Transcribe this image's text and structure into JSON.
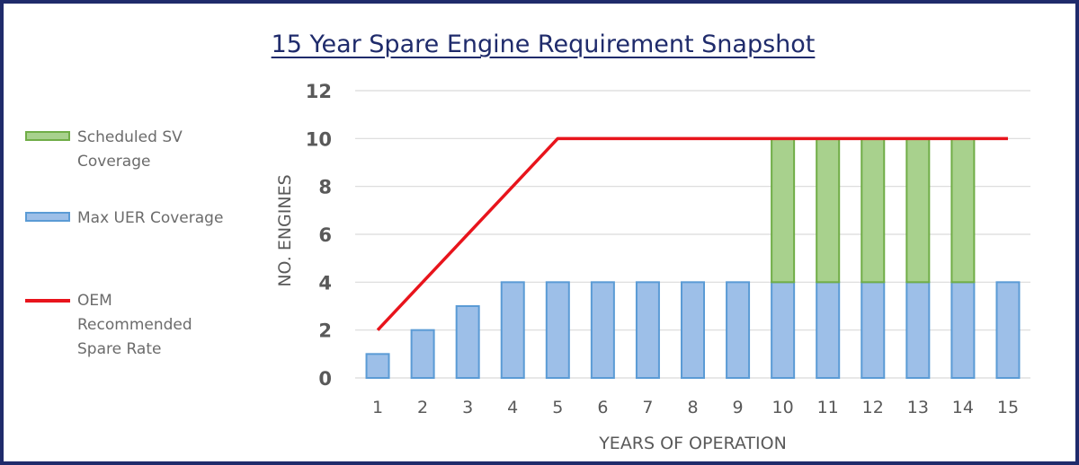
{
  "title": "15 Year Spare Engine Requirement Snapshot",
  "legend": {
    "items": [
      {
        "label": "Scheduled SV Coverage",
        "kind": "bar",
        "color": "#a8d18d"
      },
      {
        "label": "Max UER Coverage",
        "kind": "bar",
        "color": "#9dbfe8"
      },
      {
        "label": "OEM Recommended Spare Rate",
        "kind": "line",
        "color": "#e8141c"
      }
    ]
  },
  "colors": {
    "frame": "#1f2b6b",
    "title": "#1f2b6b",
    "max_uer": "#9dbfe8",
    "max_uer_border": "#5b9bd5",
    "scheduled_sv": "#a8d18d",
    "scheduled_sv_border": "#70ad47",
    "oem_line": "#e8141c",
    "grid": "#d9d9d9"
  },
  "chart_data": {
    "type": "bar",
    "stacked": true,
    "title": "15 Year Spare Engine Requirement Snapshot",
    "xlabel": "YEARS OF OPERATION",
    "ylabel": "NO. ENGINES",
    "ylim": [
      0,
      12
    ],
    "yticks": [
      0,
      2,
      4,
      6,
      8,
      10,
      12
    ],
    "grid": true,
    "legend_position": "left",
    "categories": [
      "1",
      "2",
      "3",
      "4",
      "5",
      "6",
      "7",
      "8",
      "9",
      "10",
      "11",
      "12",
      "13",
      "14",
      "15"
    ],
    "series": [
      {
        "name": "Max UER Coverage",
        "type": "bar",
        "values": [
          1,
          2,
          3,
          4,
          4,
          4,
          4,
          4,
          4,
          4,
          4,
          4,
          4,
          4,
          4
        ]
      },
      {
        "name": "Scheduled SV Coverage",
        "type": "bar",
        "values": [
          0,
          0,
          0,
          0,
          0,
          0,
          0,
          0,
          0,
          6,
          6,
          6,
          6,
          6,
          0
        ]
      },
      {
        "name": "OEM Recommended Spare Rate",
        "type": "line",
        "values": [
          2,
          4,
          6,
          8,
          10,
          10,
          10,
          10,
          10,
          10,
          10,
          10,
          10,
          10,
          10
        ]
      }
    ]
  }
}
